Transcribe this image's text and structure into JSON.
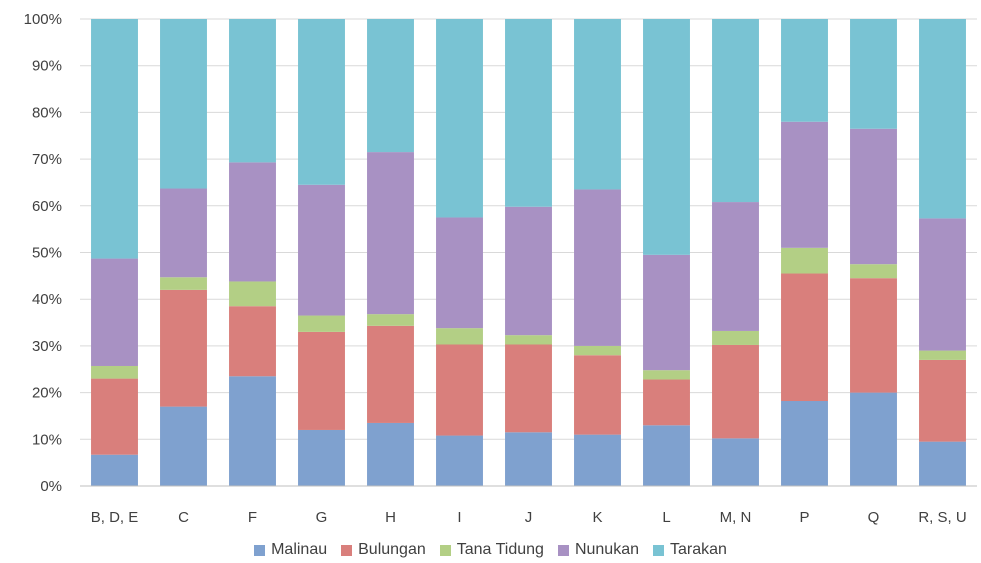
{
  "chart_data": {
    "type": "bar",
    "stacked": true,
    "percent_stacked": true,
    "categories": [
      "B, D, E",
      "C",
      "F",
      "G",
      "H",
      "I",
      "J",
      "K",
      "L",
      "M, N",
      "P",
      "Q",
      "R, S, U"
    ],
    "series": [
      {
        "name": "Malinau",
        "color": "#7fa1cf",
        "values": [
          6.7,
          17.0,
          23.5,
          12.0,
          13.5,
          10.8,
          11.5,
          11.0,
          13.0,
          10.2,
          18.2,
          20.0,
          9.5
        ]
      },
      {
        "name": "Bulungan",
        "color": "#d97f7c",
        "values": [
          16.3,
          25.0,
          15.0,
          21.0,
          20.8,
          19.5,
          18.8,
          17.0,
          9.8,
          20.0,
          27.3,
          24.5,
          17.5
        ]
      },
      {
        "name": "Tana Tidung",
        "color": "#b3cf85",
        "values": [
          2.7,
          2.7,
          5.3,
          3.5,
          2.5,
          3.5,
          2.0,
          2.0,
          2.0,
          3.0,
          5.5,
          3.0,
          2.0
        ]
      },
      {
        "name": "Nunukan",
        "color": "#a891c3",
        "values": [
          23.0,
          19.0,
          25.5,
          28.0,
          34.7,
          23.7,
          27.5,
          33.5,
          24.7,
          27.6,
          27.0,
          29.0,
          28.3
        ]
      },
      {
        "name": "Tarakan",
        "color": "#79c3d3",
        "values": [
          51.3,
          36.3,
          30.7,
          35.5,
          28.5,
          42.5,
          40.2,
          36.5,
          50.5,
          39.2,
          22.0,
          23.5,
          42.7
        ]
      }
    ],
    "ylim": [
      0,
      100
    ],
    "yticks": [
      "0%",
      "10%",
      "20%",
      "30%",
      "40%",
      "50%",
      "60%",
      "70%",
      "80%",
      "90%",
      "100%"
    ],
    "grid": true,
    "legend_position": "bottom",
    "title": "",
    "xlabel": "",
    "ylabel": ""
  }
}
